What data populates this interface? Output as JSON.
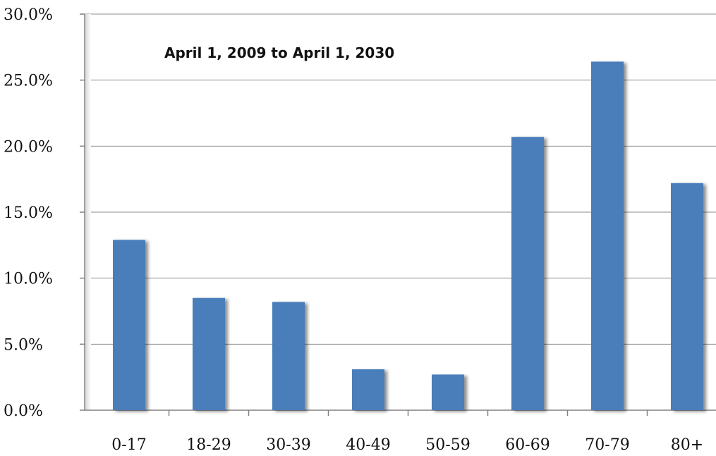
{
  "chart_data": {
    "type": "bar",
    "title": "",
    "xlabel": "",
    "ylabel": "",
    "annotation": "April 1, 2009 to April 1, 2030",
    "categories": [
      "0-17",
      "18-29",
      "30-39",
      "40-49",
      "50-59",
      "60-69",
      "70-79",
      "80+"
    ],
    "values": [
      12.9,
      8.5,
      8.2,
      3.1,
      2.7,
      20.7,
      26.4,
      17.2
    ],
    "ylim": [
      0,
      30
    ],
    "yticks": [
      "0.0%",
      "5.0%",
      "10.0%",
      "15.0%",
      "20.0%",
      "25.0%",
      "30.0%"
    ],
    "grid": true,
    "bar_color": "#4a7ebb",
    "grid_color": "#8c8c8c",
    "axis_color": "#808080"
  }
}
